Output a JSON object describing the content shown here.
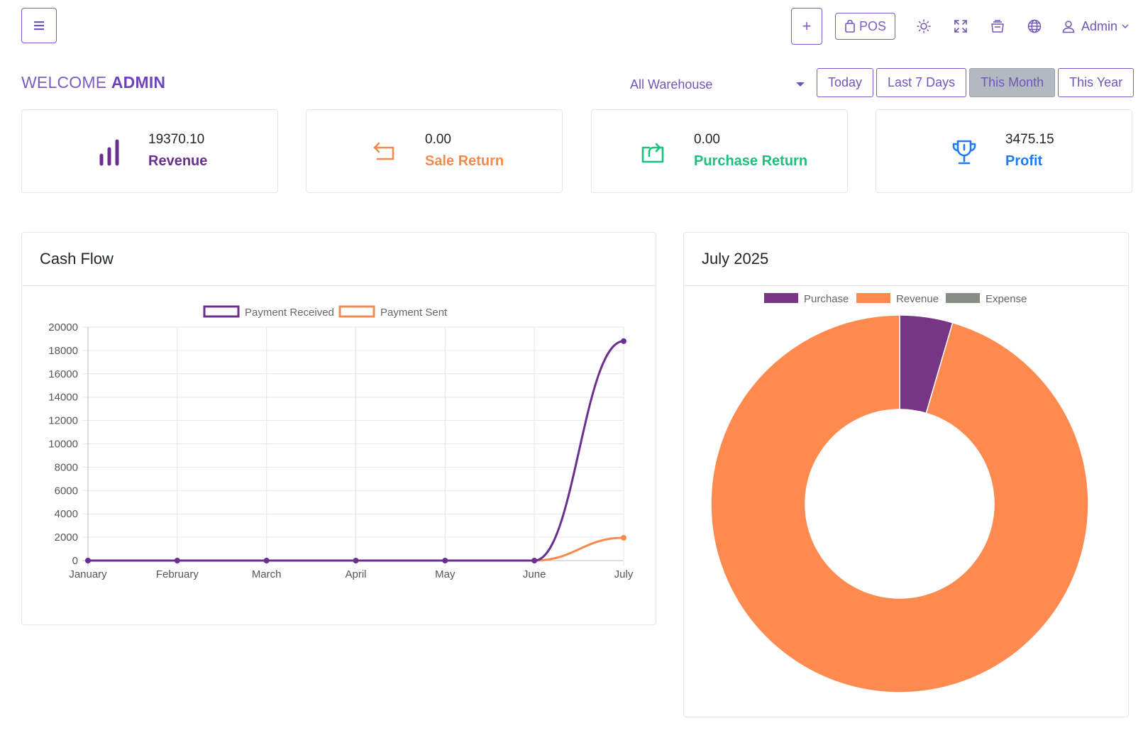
{
  "topbar": {
    "plus_label": "+",
    "pos_label": "POS",
    "user_label": "Admin"
  },
  "welcome": {
    "prefix": "WELCOME",
    "name": "ADMIN"
  },
  "filters": {
    "warehouse": "All Warehouse",
    "ranges": [
      "Today",
      "Last 7 Days",
      "This Month",
      "This Year"
    ],
    "active_range": "This Month"
  },
  "stats": [
    {
      "value": "19370.10",
      "label": "Revenue",
      "color": "#6b2f8f",
      "icon": "bar-chart-icon"
    },
    {
      "value": "0.00",
      "label": "Sale Return",
      "color": "#f58a4e",
      "icon": "return-arrow-icon"
    },
    {
      "value": "0.00",
      "label": "Purchase Return",
      "color": "#19c27a",
      "icon": "purchase-return-icon"
    },
    {
      "value": "3475.15",
      "label": "Profit",
      "color": "#1f7bf2",
      "icon": "trophy-icon"
    }
  ],
  "cashflow": {
    "title": "Cash Flow"
  },
  "donut": {
    "title": "July 2025"
  },
  "chart_data": [
    {
      "type": "line",
      "title": "Cash Flow",
      "categories": [
        "January",
        "February",
        "March",
        "April",
        "May",
        "June",
        "July"
      ],
      "series": [
        {
          "name": "Payment Received",
          "color": "#6b2f8f",
          "values": [
            0,
            0,
            0,
            0,
            0,
            0,
            18800
          ]
        },
        {
          "name": "Payment Sent",
          "color": "#f58a4e",
          "values": [
            0,
            0,
            0,
            0,
            0,
            0,
            1950
          ]
        }
      ],
      "ylim": [
        0,
        20000
      ],
      "yticks": [
        0,
        2000,
        4000,
        6000,
        8000,
        10000,
        12000,
        14000,
        16000,
        18000,
        20000
      ],
      "grid": true,
      "legend": "top-center"
    },
    {
      "type": "pie",
      "variant": "donut",
      "title": "July 2025",
      "labels": [
        "Purchase",
        "Revenue",
        "Expense"
      ],
      "colors": [
        "#773585",
        "#ff8a50",
        "#868e84"
      ],
      "values": [
        920,
        19370.1,
        0
      ],
      "legend": "top-center"
    }
  ]
}
